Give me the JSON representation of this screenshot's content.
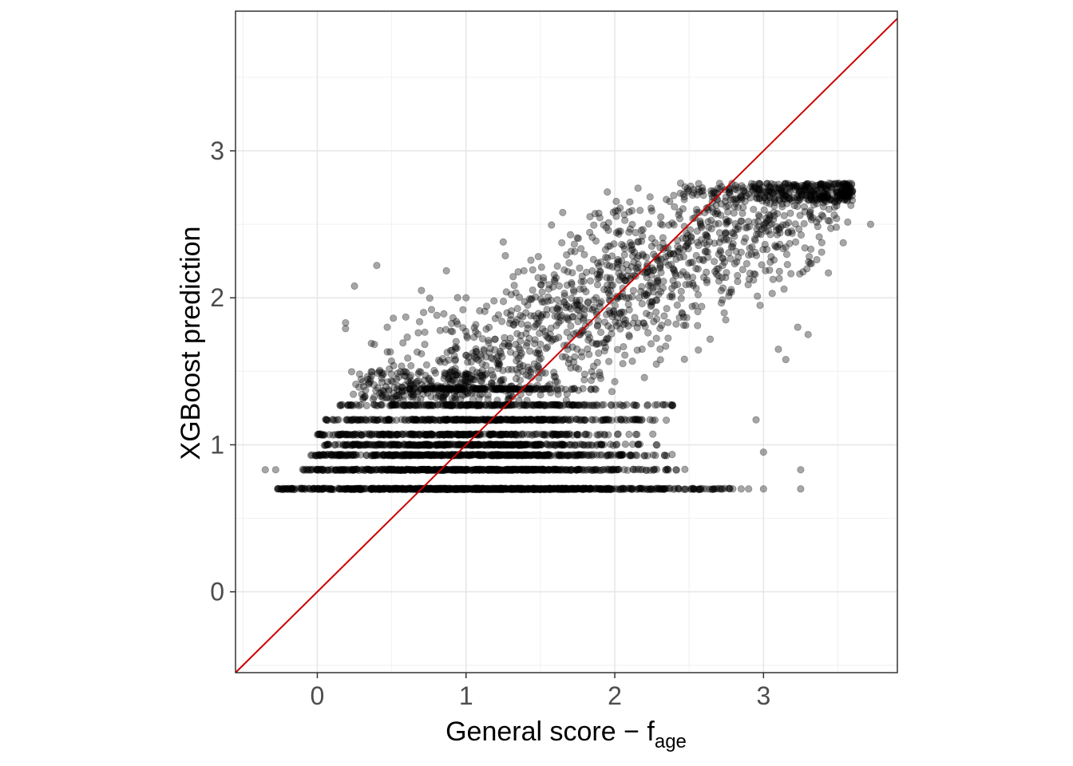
{
  "chart_data": {
    "type": "scatter",
    "title": "",
    "xlabel": {
      "main": "General score − f",
      "subscript": "age"
    },
    "ylabel": "XGBoost prediction",
    "xlim": [
      -0.55,
      3.9
    ],
    "ylim": [
      -0.55,
      3.95
    ],
    "x_ticks": [
      0,
      1,
      2,
      3
    ],
    "y_ticks": [
      0,
      1,
      2,
      3
    ],
    "x_tick_labels": [
      "0",
      "1",
      "2",
      "3"
    ],
    "y_tick_labels": [
      "0",
      "1",
      "2",
      "3"
    ],
    "grid": true,
    "legend": "none",
    "reference_line": {
      "type": "identity",
      "slope": 1,
      "intercept": 0,
      "color": "#cc0000"
    },
    "point_style": {
      "color": "#000000",
      "opacity": 0.35
    },
    "bands": [
      {
        "y": 0.7,
        "x_range": [
          -0.3,
          2.8
        ],
        "count": 900
      },
      {
        "y": 0.83,
        "x_range": [
          -0.1,
          2.5
        ],
        "count": 520
      },
      {
        "y": 0.93,
        "x_range": [
          -0.05,
          2.4
        ],
        "count": 460
      },
      {
        "y": 1.0,
        "x_range": [
          0.0,
          2.3
        ],
        "count": 360
      },
      {
        "y": 1.07,
        "x_range": [
          0.0,
          2.3
        ],
        "count": 300
      },
      {
        "y": 1.17,
        "x_range": [
          0.0,
          2.4
        ],
        "count": 330
      },
      {
        "y": 1.27,
        "x_range": [
          0.15,
          2.4
        ],
        "count": 260
      },
      {
        "y": 1.38,
        "x_range": [
          0.6,
          1.9
        ],
        "count": 170
      }
    ],
    "cloud_trend": {
      "x_range": [
        0.2,
        3.6
      ],
      "slope": 0.6,
      "intercept": 0.85,
      "y_max": 2.78,
      "count": 1700
    },
    "outliers": [
      {
        "x": -0.35,
        "y": 0.83
      },
      {
        "x": -0.28,
        "y": 0.83
      },
      {
        "x": 0.25,
        "y": 2.08
      },
      {
        "x": 0.4,
        "y": 2.22
      },
      {
        "x": 0.19,
        "y": 1.83
      },
      {
        "x": 0.19,
        "y": 1.79
      },
      {
        "x": 3.72,
        "y": 2.5
      },
      {
        "x": 3.3,
        "y": 1.75
      },
      {
        "x": 3.25,
        "y": 0.83
      },
      {
        "x": 3.25,
        "y": 0.7
      },
      {
        "x": 3.15,
        "y": 1.58
      },
      {
        "x": 3.0,
        "y": 0.7
      },
      {
        "x": 3.0,
        "y": 0.95
      },
      {
        "x": 2.95,
        "y": 1.17
      },
      {
        "x": 3.23,
        "y": 1.8
      },
      {
        "x": 3.1,
        "y": 1.65
      },
      {
        "x": 1.95,
        "y": 2.72
      },
      {
        "x": 1.65,
        "y": 2.58
      },
      {
        "x": 1.25,
        "y": 2.38
      },
      {
        "x": 1.0,
        "y": 2.0
      },
      {
        "x": 0.7,
        "y": 2.05
      },
      {
        "x": 0.47,
        "y": 1.8
      },
      {
        "x": 2.55,
        "y": 2.6
      },
      {
        "x": 2.85,
        "y": 0.7
      },
      {
        "x": 2.9,
        "y": 0.7
      }
    ]
  }
}
